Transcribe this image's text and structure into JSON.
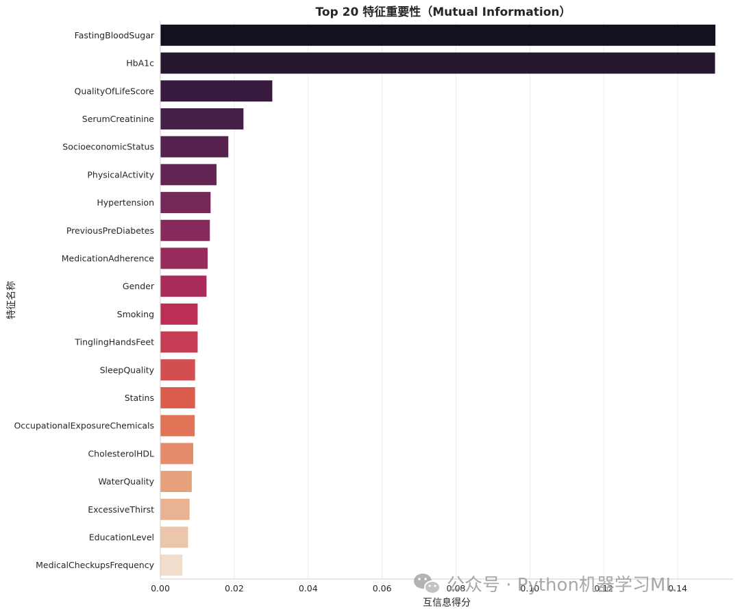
{
  "chart_data": {
    "type": "bar",
    "orientation": "horizontal",
    "title": "Top 20 特征重要性（Mutual Information）",
    "xlabel": "互信息得分",
    "ylabel": "特征名称",
    "xlim": [
      0,
      0.155
    ],
    "xticks": [
      "0.00",
      "0.02",
      "0.04",
      "0.06",
      "0.08",
      "0.10",
      "0.12",
      "0.14"
    ],
    "xtick_values": [
      0,
      0.02,
      0.04,
      0.06,
      0.08,
      0.1,
      0.12,
      0.14
    ],
    "grid": "vertical",
    "categories": [
      "FastingBloodSugar",
      "HbA1c",
      "QualityOfLifeScore",
      "SerumCreatinine",
      "SocioeconomicStatus",
      "PhysicalActivity",
      "Hypertension",
      "PreviousPreDiabetes",
      "MedicationAdherence",
      "Gender",
      "Smoking",
      "TinglingHandsFeet",
      "SleepQuality",
      "Statins",
      "OccupationalExposureChemicals",
      "CholesterolHDL",
      "WaterQuality",
      "ExcessiveThirst",
      "EducationLevel",
      "MedicalCheckupsFrequency"
    ],
    "values": [
      0.1502,
      0.1501,
      0.0303,
      0.0225,
      0.0184,
      0.0152,
      0.0136,
      0.0134,
      0.0128,
      0.0125,
      0.0101,
      0.0101,
      0.0094,
      0.0094,
      0.0093,
      0.0089,
      0.0085,
      0.0079,
      0.0075,
      0.006
    ],
    "colors": [
      "#14111f",
      "#261730",
      "#371a3d",
      "#461f48",
      "#55224f",
      "#642555",
      "#742857",
      "#852a5a",
      "#962b5c",
      "#a82b59",
      "#bb2f55",
      "#c73c55",
      "#d34f4f",
      "#db5b4c",
      "#e07356",
      "#e48b6b",
      "#e7a07c",
      "#e9b393",
      "#ecc6aa",
      "#f1ddcc"
    ]
  },
  "watermark": {
    "icon": "wechat-icon",
    "text": "公众号 · Python机器学习ML"
  }
}
